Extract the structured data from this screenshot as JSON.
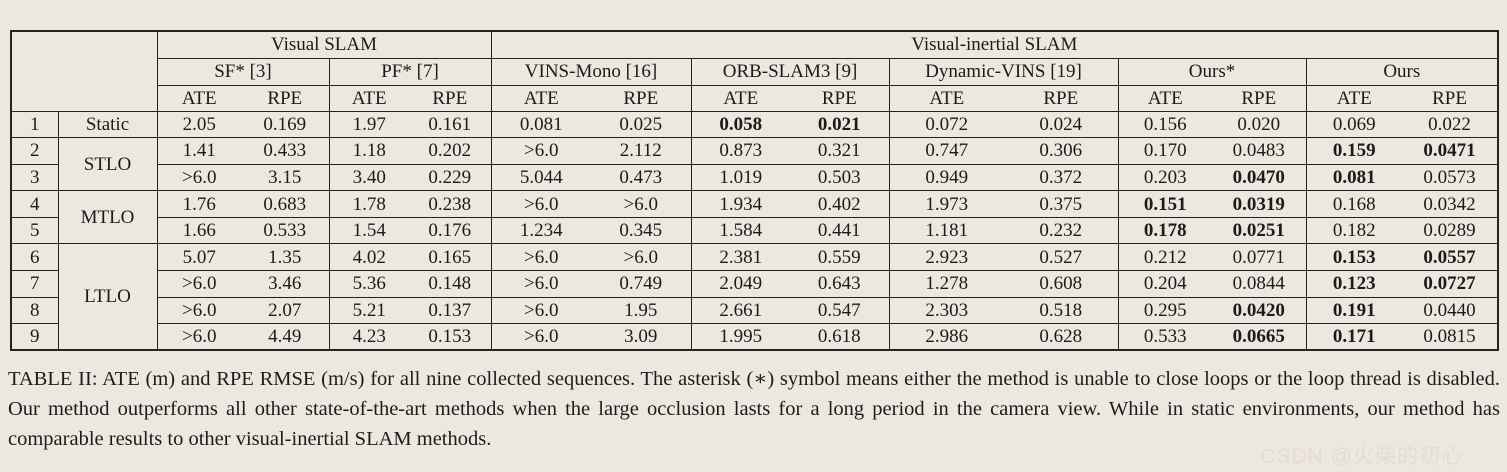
{
  "colors": {
    "background": "#ede8df",
    "border": "#222222",
    "text": "#1b1b1b",
    "watermark": "#e0dbd2"
  },
  "table": {
    "header": {
      "group1": "Visual SLAM",
      "group2": "Visual-inertial SLAM",
      "methods": [
        "SF* [3]",
        "PF* [7]",
        "VINS-Mono [16]",
        "ORB-SLAM3 [9]",
        "Dynamic-VINS [19]",
        "Ours*",
        "Ours"
      ],
      "metric_ate": "ATE",
      "metric_rpe": "RPE"
    },
    "rows": [
      {
        "num": "1",
        "scenario": "Static",
        "scenario_rowspan": 1,
        "values": [
          "2.05",
          "0.169",
          "1.97",
          "0.161",
          "0.081",
          "0.025",
          "0.058",
          "0.021",
          "0.072",
          "0.024",
          "0.156",
          "0.020",
          "0.069",
          "0.022"
        ],
        "bold": [
          6,
          7
        ]
      },
      {
        "num": "2",
        "scenario": "STLO",
        "scenario_rowspan": 2,
        "values": [
          "1.41",
          "0.433",
          "1.18",
          "0.202",
          ">6.0",
          "2.112",
          "0.873",
          "0.321",
          "0.747",
          "0.306",
          "0.170",
          "0.0483",
          "0.159",
          "0.0471"
        ],
        "bold": [
          12,
          13
        ]
      },
      {
        "num": "3",
        "values": [
          ">6.0",
          "3.15",
          "3.40",
          "0.229",
          "5.044",
          "0.473",
          "1.019",
          "0.503",
          "0.949",
          "0.372",
          "0.203",
          "0.0470",
          "0.081",
          "0.0573"
        ],
        "bold": [
          11,
          12
        ]
      },
      {
        "num": "4",
        "scenario": "MTLO",
        "scenario_rowspan": 2,
        "values": [
          "1.76",
          "0.683",
          "1.78",
          "0.238",
          ">6.0",
          ">6.0",
          "1.934",
          "0.402",
          "1.973",
          "0.375",
          "0.151",
          "0.0319",
          "0.168",
          "0.0342"
        ],
        "bold": [
          10,
          11
        ]
      },
      {
        "num": "5",
        "values": [
          "1.66",
          "0.533",
          "1.54",
          "0.176",
          "1.234",
          "0.345",
          "1.584",
          "0.441",
          "1.181",
          "0.232",
          "0.178",
          "0.0251",
          "0.182",
          "0.0289"
        ],
        "bold": [
          10,
          11
        ]
      },
      {
        "num": "6",
        "scenario": "LTLO",
        "scenario_rowspan": 4,
        "values": [
          "5.07",
          "1.35",
          "4.02",
          "0.165",
          ">6.0",
          ">6.0",
          "2.381",
          "0.559",
          "2.923",
          "0.527",
          "0.212",
          "0.0771",
          "0.153",
          "0.0557"
        ],
        "bold": [
          12,
          13
        ]
      },
      {
        "num": "7",
        "values": [
          ">6.0",
          "3.46",
          "5.36",
          "0.148",
          ">6.0",
          "0.749",
          "2.049",
          "0.643",
          "1.278",
          "0.608",
          "0.204",
          "0.0844",
          "0.123",
          "0.0727"
        ],
        "bold": [
          12,
          13
        ]
      },
      {
        "num": "8",
        "values": [
          ">6.0",
          "2.07",
          "5.21",
          "0.137",
          ">6.0",
          "1.95",
          "2.661",
          "0.547",
          "2.303",
          "0.518",
          "0.295",
          "0.0420",
          "0.191",
          "0.0440"
        ],
        "bold": [
          11,
          12
        ]
      },
      {
        "num": "9",
        "values": [
          ">6.0",
          "4.49",
          "4.23",
          "0.153",
          ">6.0",
          "3.09",
          "1.995",
          "0.618",
          "2.986",
          "0.628",
          "0.533",
          "0.0665",
          "0.171",
          "0.0815"
        ],
        "bold": [
          11,
          12
        ]
      }
    ]
  },
  "caption": "TABLE II: ATE (m) and RPE RMSE (m/s) for all nine collected sequences. The asterisk (∗) symbol means either the method is unable to close loops or the loop thread is disabled. Our method outperforms all other state-of-the-art methods when the large occlusion lasts for a long period in the camera view. While in static environments, our method has comparable results to other visual-inertial SLAM methods.",
  "watermark": "CSDN @火柴的初心"
}
